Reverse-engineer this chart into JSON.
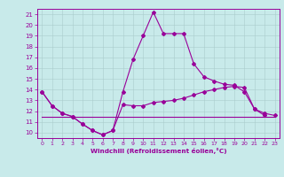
{
  "xlabel": "Windchill (Refroidissement éolien,°C)",
  "bg_color": "#c8eaea",
  "line_color": "#990099",
  "grid_color": "#aaccaa",
  "x_hours": [
    0,
    1,
    2,
    3,
    4,
    5,
    6,
    7,
    8,
    9,
    10,
    11,
    12,
    13,
    14,
    15,
    16,
    17,
    18,
    19,
    20,
    21,
    22,
    23
  ],
  "temp_curve": [
    13.8,
    12.5,
    11.8,
    11.5,
    10.8,
    10.2,
    9.8,
    10.2,
    13.8,
    16.8,
    19.0,
    21.2,
    19.2,
    19.2,
    19.2,
    16.4,
    15.2,
    14.8,
    14.5,
    14.4,
    13.8,
    12.2,
    11.6,
    null
  ],
  "windchill_curve": [
    13.8,
    12.5,
    11.8,
    11.5,
    10.8,
    10.2,
    9.8,
    10.2,
    12.6,
    12.5,
    12.5,
    12.8,
    12.9,
    13.0,
    13.2,
    13.5,
    13.8,
    14.0,
    14.2,
    14.3,
    14.2,
    12.2,
    11.8,
    11.6
  ],
  "flat_line_x": [
    0,
    23
  ],
  "flat_line_y": [
    11.5,
    11.5
  ],
  "ylim": [
    9.5,
    21.5
  ],
  "xlim": [
    -0.5,
    23.5
  ],
  "yticks": [
    10,
    11,
    12,
    13,
    14,
    15,
    16,
    17,
    18,
    19,
    20,
    21
  ],
  "xticks": [
    0,
    1,
    2,
    3,
    4,
    5,
    6,
    7,
    8,
    9,
    10,
    11,
    12,
    13,
    14,
    15,
    16,
    17,
    18,
    19,
    20,
    21,
    22,
    23
  ]
}
